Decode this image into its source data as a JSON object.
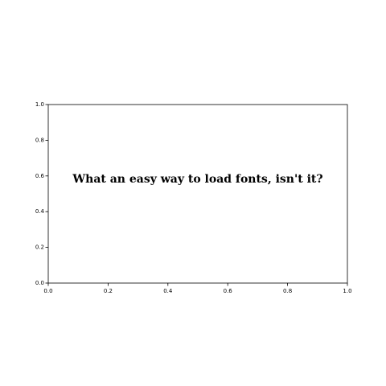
{
  "chart_data": {
    "type": "scatter",
    "title": "",
    "xlabel": "",
    "ylabel": "",
    "xlim": [
      0.0,
      1.0
    ],
    "ylim": [
      0.0,
      1.0
    ],
    "x_ticks": [
      "0.0",
      "0.2",
      "0.4",
      "0.6",
      "0.8",
      "1.0"
    ],
    "y_ticks": [
      "0.0",
      "0.2",
      "0.4",
      "0.6",
      "0.8",
      "1.0"
    ],
    "grid": false,
    "series": [],
    "annotations": [
      {
        "text": "What an easy way to load fonts, isn't it?",
        "x": 0.5,
        "y": 0.5
      }
    ]
  },
  "colors": {
    "axes": "#000000",
    "text": "#000000",
    "background": "#ffffff"
  }
}
